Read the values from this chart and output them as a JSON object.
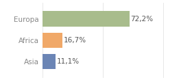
{
  "categories": [
    "Asia",
    "Africa",
    "Europa"
  ],
  "values": [
    11.1,
    16.7,
    72.2
  ],
  "labels": [
    "11,1%",
    "16,7%",
    "72,2%"
  ],
  "bar_colors": [
    "#6b85b5",
    "#f0a868",
    "#a8bc8c"
  ],
  "background_color": "#ffffff",
  "xlim": [
    0,
    105
  ],
  "label_fontsize": 7.5,
  "tick_fontsize": 7.5,
  "tick_color": "#888888",
  "grid_color": "#dddddd",
  "bar_height": 0.72
}
